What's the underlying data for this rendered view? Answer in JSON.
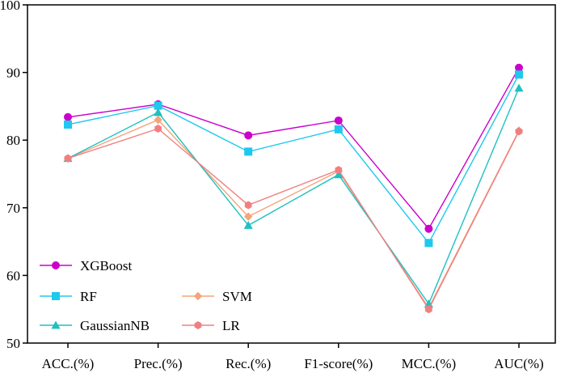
{
  "chart_data": {
    "type": "line",
    "title": "",
    "xlabel": "",
    "ylabel": "",
    "categories": [
      "ACC.(%)",
      "Prec.(%)",
      "Rec.(%)",
      "F1-score(%)",
      "MCC.(%)",
      "AUC(%)"
    ],
    "ylim": [
      50,
      100
    ],
    "yticks": [
      "50",
      "60",
      "70",
      "80",
      "90",
      "100"
    ],
    "grid": false,
    "legend_position": "bottom-left",
    "series": [
      {
        "name": "XGBoost",
        "color": "#cc00cc",
        "marker": "circle",
        "values": [
          83.4,
          85.3,
          80.7,
          82.9,
          66.9,
          90.7
        ]
      },
      {
        "name": "RF",
        "color": "#1ec8ef",
        "marker": "square",
        "values": [
          82.3,
          85.1,
          78.3,
          81.6,
          64.8,
          89.7
        ]
      },
      {
        "name": "SVM",
        "color": "#f4a47a",
        "marker": "diamond",
        "values": [
          77.3,
          83.0,
          68.7,
          75.4,
          55.2,
          81.4
        ]
      },
      {
        "name": "GaussianNB",
        "color": "#20c0c0",
        "marker": "triangle",
        "values": [
          77.3,
          84.1,
          67.4,
          74.9,
          55.8,
          87.7
        ]
      },
      {
        "name": "LR",
        "color": "#f08080",
        "marker": "hexagon",
        "values": [
          77.3,
          81.7,
          70.4,
          75.6,
          55.0,
          81.3
        ]
      }
    ]
  }
}
